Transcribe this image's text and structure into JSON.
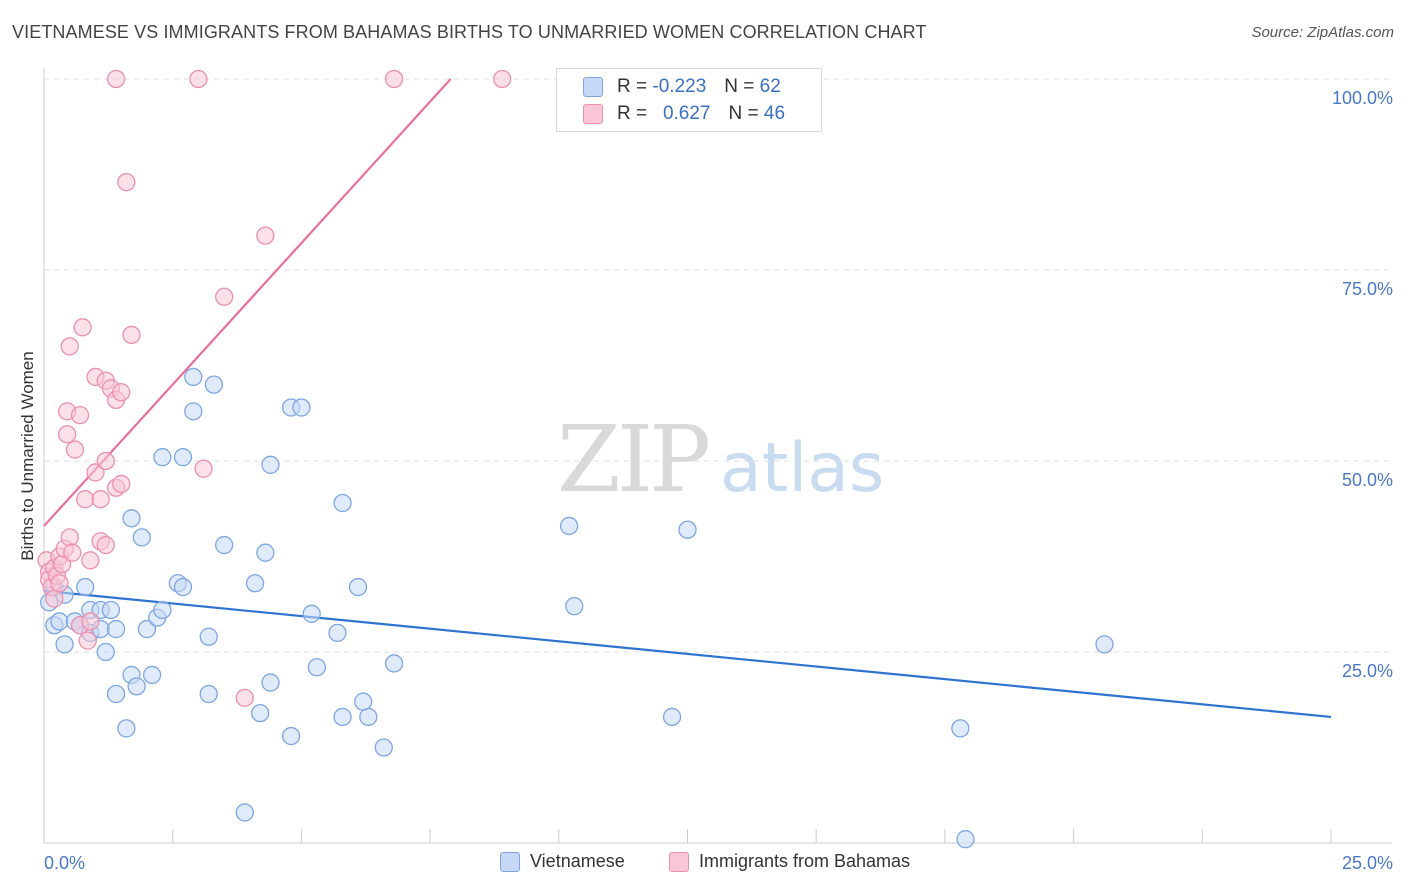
{
  "title": "VIETNAMESE VS IMMIGRANTS FROM BAHAMAS BIRTHS TO UNMARRIED WOMEN CORRELATION CHART",
  "source": "Source: ZipAtlas.com",
  "watermark": {
    "zip": "ZIP",
    "atlas": "atlas"
  },
  "colors": {
    "blue_fill": "#c5d8f5",
    "blue_stroke": "#7ea6e3",
    "blue_line": "#2f73d0",
    "pink_fill": "#f8c6d6",
    "pink_stroke": "#eb90ae",
    "pink_line": "#e8709a",
    "grid": "#dddddd",
    "axis_text": "#4a78c2"
  },
  "legend": {
    "rows": [
      {
        "r_label": "R =",
        "r_value": "-0.223",
        "n_label": "N =",
        "n_value": "62"
      },
      {
        "r_label": "R =",
        "r_value": "0.627",
        "n_label": "N =",
        "n_value": "46"
      }
    ]
  },
  "chart_data": {
    "type": "scatter",
    "title": "VIETNAMESE VS IMMIGRANTS FROM BAHAMAS BIRTHS TO UNMARRIED WOMEN CORRELATION CHART",
    "xlabel": "",
    "ylabel": "Births to Unmarried Women",
    "xlim": [
      0,
      25
    ],
    "ylim": [
      0,
      100
    ],
    "x_ticks": [
      "0.0%",
      "25.0%"
    ],
    "y_ticks": [
      "25.0%",
      "50.0%",
      "75.0%",
      "100.0%"
    ],
    "grid": true,
    "legend_position": "top-center",
    "series": [
      {
        "name": "Vietnamese",
        "color": "#7ea6e3",
        "trend": {
          "x": [
            0,
            25
          ],
          "y": [
            33.0,
            16.5
          ]
        },
        "points": [
          [
            0.1,
            31.5
          ],
          [
            0.2,
            33.5
          ],
          [
            0.2,
            28.5
          ],
          [
            0.3,
            29.0
          ],
          [
            0.4,
            32.5
          ],
          [
            0.4,
            26.0
          ],
          [
            0.6,
            29.0
          ],
          [
            0.7,
            28.5
          ],
          [
            0.8,
            33.5
          ],
          [
            0.9,
            30.5
          ],
          [
            0.9,
            27.5
          ],
          [
            1.1,
            30.5
          ],
          [
            1.1,
            28.0
          ],
          [
            1.2,
            25.0
          ],
          [
            1.3,
            30.5
          ],
          [
            1.4,
            28.0
          ],
          [
            1.4,
            19.5
          ],
          [
            1.6,
            15.0
          ],
          [
            1.7,
            22.0
          ],
          [
            1.7,
            42.5
          ],
          [
            1.8,
            20.5
          ],
          [
            1.9,
            40.0
          ],
          [
            2.0,
            28.0
          ],
          [
            2.1,
            22.0
          ],
          [
            2.2,
            29.5
          ],
          [
            2.3,
            30.5
          ],
          [
            2.3,
            50.5
          ],
          [
            2.6,
            34.0
          ],
          [
            2.7,
            33.5
          ],
          [
            2.7,
            50.5
          ],
          [
            2.9,
            61.0
          ],
          [
            2.9,
            56.5
          ],
          [
            3.2,
            19.5
          ],
          [
            3.2,
            27.0
          ],
          [
            3.3,
            60.0
          ],
          [
            3.5,
            39.0
          ],
          [
            3.9,
            4.0
          ],
          [
            4.1,
            34.0
          ],
          [
            4.2,
            17.0
          ],
          [
            4.3,
            38.0
          ],
          [
            4.4,
            21.0
          ],
          [
            4.4,
            49.5
          ],
          [
            4.8,
            57.0
          ],
          [
            4.8,
            14.0
          ],
          [
            5.0,
            57.0
          ],
          [
            5.2,
            30.0
          ],
          [
            5.3,
            23.0
          ],
          [
            5.7,
            27.5
          ],
          [
            5.8,
            44.5
          ],
          [
            5.8,
            16.5
          ],
          [
            6.1,
            33.5
          ],
          [
            6.3,
            16.5
          ],
          [
            6.2,
            18.5
          ],
          [
            6.6,
            12.5
          ],
          [
            6.8,
            23.5
          ],
          [
            10.2,
            41.5
          ],
          [
            10.3,
            31.0
          ],
          [
            12.2,
            16.5
          ],
          [
            12.5,
            41.0
          ],
          [
            17.8,
            15.0
          ],
          [
            17.9,
            0.5
          ],
          [
            20.6,
            26.0
          ]
        ]
      },
      {
        "name": "Immigrants from Bahamas",
        "color": "#eb90ae",
        "trend": {
          "x": [
            0,
            7.9
          ],
          "y": [
            41.5,
            100
          ]
        },
        "points": [
          [
            0.05,
            37.0
          ],
          [
            0.1,
            35.5
          ],
          [
            0.1,
            34.5
          ],
          [
            0.15,
            33.5
          ],
          [
            0.2,
            36.0
          ],
          [
            0.2,
            32.0
          ],
          [
            0.25,
            35.0
          ],
          [
            0.3,
            37.5
          ],
          [
            0.35,
            36.5
          ],
          [
            0.4,
            38.5
          ],
          [
            0.45,
            56.5
          ],
          [
            0.5,
            40.0
          ],
          [
            0.5,
            65.0
          ],
          [
            0.45,
            53.5
          ],
          [
            0.55,
            38.0
          ],
          [
            0.6,
            51.5
          ],
          [
            0.7,
            56.0
          ],
          [
            0.7,
            28.5
          ],
          [
            0.75,
            67.5
          ],
          [
            0.8,
            45.0
          ],
          [
            0.9,
            29.0
          ],
          [
            0.9,
            37.0
          ],
          [
            1.0,
            48.5
          ],
          [
            1.0,
            61.0
          ],
          [
            1.1,
            45.0
          ],
          [
            1.1,
            39.5
          ],
          [
            1.2,
            39.0
          ],
          [
            1.2,
            60.5
          ],
          [
            1.2,
            50.0
          ],
          [
            1.3,
            59.5
          ],
          [
            1.4,
            46.5
          ],
          [
            1.4,
            58.0
          ],
          [
            1.4,
            100.0
          ],
          [
            1.5,
            59.0
          ],
          [
            1.5,
            47.0
          ],
          [
            1.6,
            86.5
          ],
          [
            1.7,
            66.5
          ],
          [
            3.0,
            100.0
          ],
          [
            3.1,
            49.0
          ],
          [
            3.5,
            71.5
          ],
          [
            3.9,
            19.0
          ],
          [
            4.3,
            79.5
          ],
          [
            6.8,
            100.0
          ],
          [
            8.9,
            100.0
          ],
          [
            0.85,
            26.5
          ],
          [
            0.3,
            34.0
          ]
        ]
      }
    ]
  },
  "bottom_legend": [
    "Vietnamese",
    "Immigrants from Bahamas"
  ]
}
